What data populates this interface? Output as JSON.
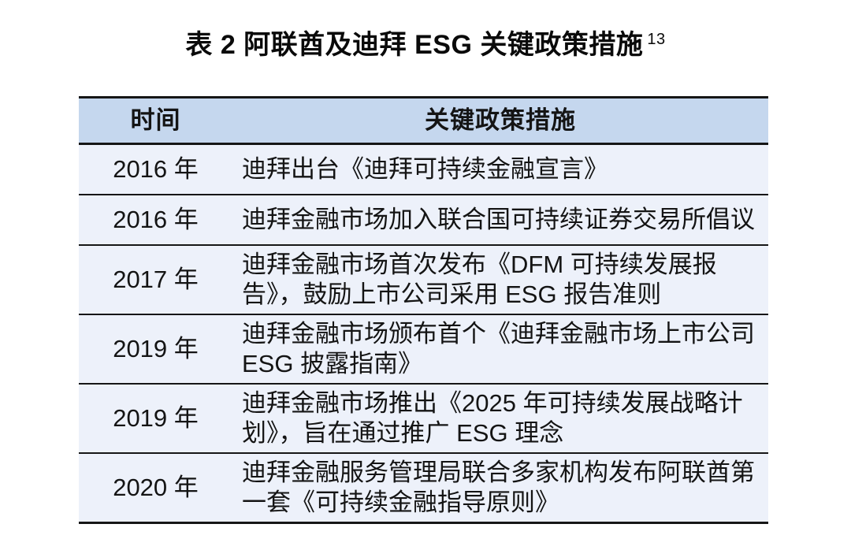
{
  "page": {
    "background": "#ffffff"
  },
  "title": {
    "text": "表 2 阿联酋及迪拜 ESG 关键政策措施",
    "footnote_ref": "13"
  },
  "table": {
    "colors": {
      "header_bg": "#c5d7ee",
      "row_bg": "#edf1fa",
      "border": "#161616"
    },
    "columns": [
      {
        "key": "time",
        "label": "时间"
      },
      {
        "key": "measure",
        "label": "关键政策措施"
      }
    ],
    "rows": [
      {
        "time": "2016 年",
        "measure": "迪拜出台《迪拜可持续金融宣言》"
      },
      {
        "time": "2016 年",
        "measure": "迪拜金融市场加入联合国可持续证券交易所倡议"
      },
      {
        "time": "2017 年",
        "measure": "迪拜金融市场首次发布《DFM 可持续发展报告》，鼓励上市公司采用 ESG 报告准则"
      },
      {
        "time": "2019 年",
        "measure": "迪拜金融市场颁布首个《迪拜金融市场上市公司 ESG 披露指南》"
      },
      {
        "time": "2019 年",
        "measure": "迪拜金融市场推出《2025 年可持续发展战略计划》，旨在通过推广 ESG 理念"
      },
      {
        "time": "2020 年",
        "measure": "迪拜金融服务管理局联合多家机构发布阿联酋第一套《可持续金融指导原则》"
      }
    ]
  }
}
